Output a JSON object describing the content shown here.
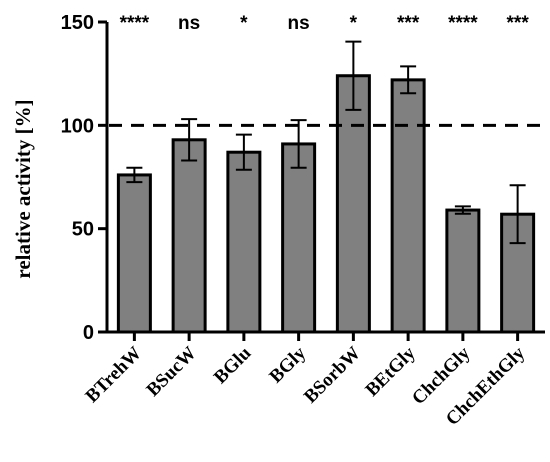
{
  "chart_data": {
    "type": "bar",
    "title": "",
    "xlabel": "",
    "ylabel": "relative activity [%]",
    "ylim": [
      0,
      150
    ],
    "yticks": [
      0,
      50,
      100,
      150
    ],
    "grid": false,
    "reference_line": 100,
    "categories": [
      "BTrehW",
      "BSucW",
      "BGlu",
      "BGly",
      "BSorbW",
      "BEtGly",
      "ChchGly",
      "ChchEthGly"
    ],
    "values": [
      76,
      93,
      87,
      91,
      124,
      122,
      59,
      57
    ],
    "error": [
      3.5,
      10,
      8.5,
      11.5,
      16.5,
      6.5,
      1.8,
      14
    ],
    "significance": [
      "****",
      "ns",
      "*",
      "ns",
      "*",
      "***",
      "****",
      "***"
    ],
    "colors": {
      "bar_fill": "#808080",
      "bar_stroke": "#000000"
    }
  }
}
